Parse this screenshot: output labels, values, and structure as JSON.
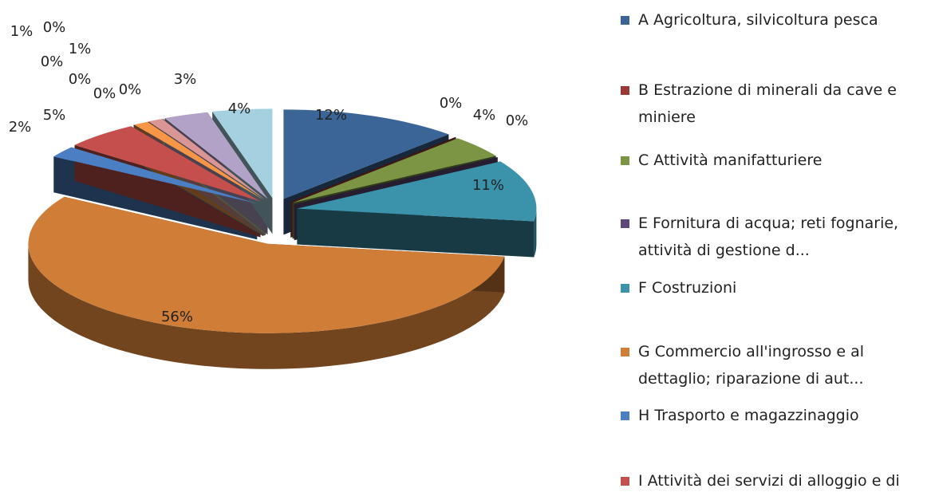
{
  "chart_data": {
    "type": "pie",
    "categories": [
      "A Agricoltura, silvicoltura pesca",
      "B Estrazione di minerali da cave e miniere",
      "C Attività manifatturiere",
      "E Fornitura di acqua; reti fognarie, attività di gestione d...",
      "F Costruzioni",
      "G Commercio all'ingrosso e al dettaglio; riparazione di aut...",
      "H Trasporto e magazzinaggio",
      "I Attività dei servizi di alloggio e di ristorazione",
      null,
      null,
      null,
      null,
      null,
      null,
      null,
      null,
      null
    ],
    "values": [
      12,
      0,
      4,
      0,
      11,
      56,
      2,
      5,
      0,
      0,
      0,
      1,
      0,
      1,
      0,
      3,
      4
    ],
    "value_labels": [
      "12%",
      "0%",
      "4%",
      "0%",
      "11%",
      "56%",
      "2%",
      "5%",
      "0%",
      "0%",
      "0%",
      "1%",
      "0%",
      "1%",
      "0%",
      "3%",
      "4%"
    ],
    "colors": [
      "#3c6597",
      "#9b3936",
      "#7b9544",
      "#5e4879",
      "#3a92ab",
      "#d07d38",
      "#4a7fc4",
      "#c44f4c",
      "#8fb24f",
      "#7e64a0",
      "#4bacc6",
      "#f79646",
      "#95b3d7",
      "#da9694",
      "#c3d69b",
      "#b3a2c7",
      "#a5d0e0"
    ]
  }
}
